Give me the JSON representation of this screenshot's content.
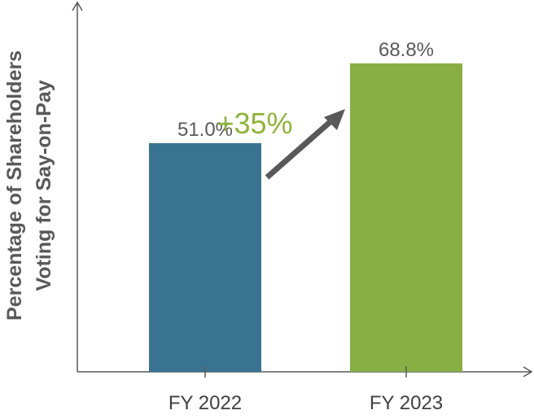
{
  "chart_data": {
    "type": "bar",
    "title": "",
    "xlabel": "",
    "ylabel_lines": [
      "Percentage of Shareholders",
      "Voting for Say-on-Pay"
    ],
    "categories": [
      "FY 2022",
      "FY 2023"
    ],
    "values": [
      51.0,
      68.8
    ],
    "value_labels": [
      "51.0%",
      "68.8%"
    ],
    "bar_colors": [
      "#387391",
      "#88AF43"
    ],
    "ylim": [
      0,
      100
    ],
    "annotation": {
      "text": "+35%",
      "color": "#8DB436",
      "arrow_color": "#595959"
    },
    "grid": false,
    "legend": "none"
  }
}
